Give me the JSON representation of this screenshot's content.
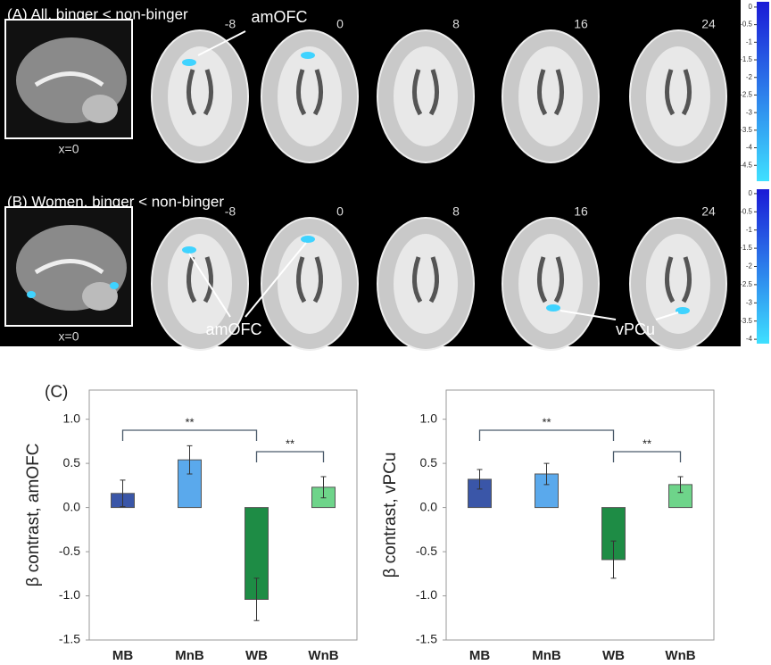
{
  "brain_panel": {
    "rows": [
      {
        "title": "(A) All, binger < non-binger",
        "sagittal_label": "x=0",
        "slices": [
          "-8",
          "0",
          "8",
          "16",
          "24"
        ],
        "annotations": [
          "amOFC"
        ],
        "colorbar": {
          "lim": [
            0.15,
            -4.95
          ],
          "ticks": [
            0,
            -0.5,
            -1,
            -1.5,
            -2,
            -2.5,
            -3,
            -3.5,
            -4,
            -4.5
          ]
        }
      },
      {
        "title": "(B) Women, binger < non-binger",
        "sagittal_label": "x=0",
        "slices": [
          "-8",
          "0",
          "8",
          "16",
          "24"
        ],
        "annotations": [
          "amOFC",
          "vPCu"
        ],
        "colorbar": {
          "lim": [
            0.12,
            -4.12
          ],
          "ticks": [
            0,
            -0.5,
            -1,
            -1.5,
            -2,
            -2.5,
            -3,
            -3.5,
            -4
          ]
        }
      }
    ]
  },
  "panel_label": "(C)",
  "chart_data": [
    {
      "type": "bar",
      "y_label": "β contrast, amOFC",
      "categories": [
        "MB",
        "MnB",
        "WB",
        "WnB"
      ],
      "values": [
        0.16,
        0.54,
        -1.04,
        0.23
      ],
      "errors": [
        0.15,
        0.16,
        0.24,
        0.12
      ],
      "colors": [
        "#3a56a8",
        "#5aa9ec",
        "#1e8c45",
        "#6ed48a"
      ],
      "ylim": [
        -1.5,
        1.33
      ],
      "yticks": [
        {
          "value": 1,
          "label": "1.0"
        },
        0.5,
        {
          "value": 0,
          "label": "0.0"
        },
        -0.5,
        {
          "value": -1,
          "label": "-1.0"
        },
        -1.5
      ],
      "significance": [
        {
          "between": [
            "MB",
            "WB"
          ],
          "label": "**"
        },
        {
          "between": [
            "WB",
            "WnB"
          ],
          "label": "**"
        }
      ]
    },
    {
      "type": "bar",
      "y_label": "β contrast, vPCu",
      "categories": [
        "MB",
        "MnB",
        "WB",
        "WnB"
      ],
      "values": [
        0.32,
        0.38,
        -0.59,
        0.26
      ],
      "errors": [
        0.11,
        0.12,
        0.21,
        0.09
      ],
      "colors": [
        "#3a56a8",
        "#5aa9ec",
        "#1e8c45",
        "#6ed48a"
      ],
      "ylim": [
        -1.5,
        1.33
      ],
      "yticks": [
        {
          "value": 1,
          "label": "1.0"
        },
        0.5,
        {
          "value": 0,
          "label": "0.0"
        },
        -0.5,
        {
          "value": -1,
          "label": "-1.0"
        },
        -1.5
      ],
      "significance": [
        {
          "between": [
            "MB",
            "WB"
          ],
          "label": "**"
        },
        {
          "between": [
            "WB",
            "WnB"
          ],
          "label": "**"
        }
      ]
    }
  ]
}
